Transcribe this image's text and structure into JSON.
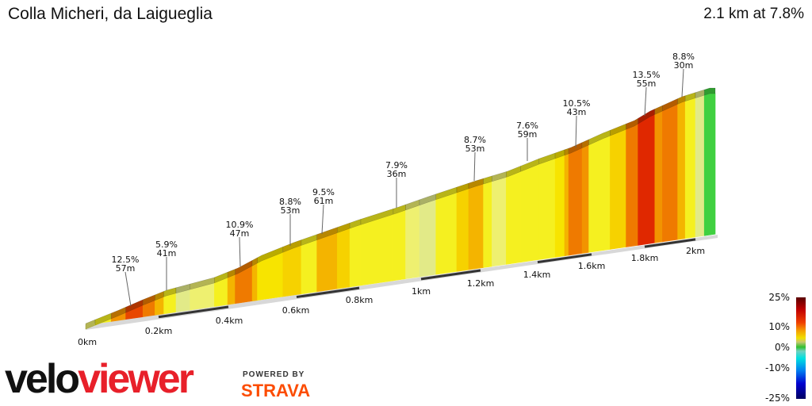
{
  "header": {
    "title": "Colla Micheri, da Laigueglia",
    "summary": "2.1 km at 7.8%"
  },
  "chart_data": {
    "type": "area",
    "title": "Colla Micheri, da Laigueglia",
    "xlabel": "",
    "ylabel": "",
    "xlim": [
      0,
      2.1
    ],
    "x_ticks": [
      "0km",
      "0.2km",
      "0.4km",
      "0.6km",
      "0.8km",
      "1km",
      "1.2km",
      "1.4km",
      "1.6km",
      "1.8km",
      "2km"
    ],
    "segments": [
      {
        "start_km": 0,
        "grade": 4
      },
      {
        "start_km": 0.026,
        "grade": 6
      },
      {
        "start_km": 0.07,
        "grade": 10
      },
      {
        "start_km": 0.11,
        "grade": 13
      },
      {
        "start_km": 0.157,
        "grade": 11
      },
      {
        "start_km": 0.19,
        "grade": 9
      },
      {
        "start_km": 0.215,
        "grade": 6
      },
      {
        "start_km": 0.25,
        "grade": 3
      },
      {
        "start_km": 0.29,
        "grade": 4
      },
      {
        "start_km": 0.36,
        "grade": 6
      },
      {
        "start_km": 0.398,
        "grade": 9
      },
      {
        "start_km": 0.42,
        "grade": 11
      },
      {
        "start_km": 0.47,
        "grade": 9
      },
      {
        "start_km": 0.485,
        "grade": 7
      },
      {
        "start_km": 0.56,
        "grade": 8
      },
      {
        "start_km": 0.615,
        "grade": 6
      },
      {
        "start_km": 0.665,
        "grade": 9
      },
      {
        "start_km": 0.73,
        "grade": 8
      },
      {
        "start_km": 0.77,
        "grade": 6
      },
      {
        "start_km": 0.805,
        "grade": 6
      },
      {
        "start_km": 0.91,
        "grade": 6
      },
      {
        "start_km": 0.95,
        "grade": 5
      },
      {
        "start_km": 0.995,
        "grade": 3
      },
      {
        "start_km": 1.05,
        "grade": 6
      },
      {
        "start_km": 1.12,
        "grade": 8
      },
      {
        "start_km": 1.16,
        "grade": 9
      },
      {
        "start_km": 1.21,
        "grade": 6
      },
      {
        "start_km": 1.24,
        "grade": 4
      },
      {
        "start_km": 1.29,
        "grade": 6
      },
      {
        "start_km": 1.34,
        "grade": 6
      },
      {
        "start_km": 1.405,
        "grade": 6
      },
      {
        "start_km": 1.465,
        "grade": 7
      },
      {
        "start_km": 1.5,
        "grade": 9
      },
      {
        "start_km": 1.515,
        "grade": 11
      },
      {
        "start_km": 1.565,
        "grade": 10
      },
      {
        "start_km": 1.59,
        "grade": 6
      },
      {
        "start_km": 1.67,
        "grade": 8
      },
      {
        "start_km": 1.73,
        "grade": 11
      },
      {
        "start_km": 1.775,
        "grade": 14
      },
      {
        "start_km": 1.84,
        "grade": 10
      },
      {
        "start_km": 1.87,
        "grade": 11
      },
      {
        "start_km": 1.93,
        "grade": 9
      },
      {
        "start_km": 1.96,
        "grade": 6
      },
      {
        "start_km": 2.0,
        "grade": 3
      },
      {
        "start_km": 2.04,
        "grade": 0
      }
    ],
    "annotations": [
      {
        "grade": "12.5%",
        "length": "57m"
      },
      {
        "grade": "5.9%",
        "length": "41m"
      },
      {
        "grade": "10.9%",
        "length": "47m"
      },
      {
        "grade": "8.8%",
        "length": "53m"
      },
      {
        "grade": "9.5%",
        "length": "61m"
      },
      {
        "grade": "7.9%",
        "length": "36m"
      },
      {
        "grade": "8.7%",
        "length": "53m"
      },
      {
        "grade": "7.6%",
        "length": "59m"
      },
      {
        "grade": "10.5%",
        "length": "43m"
      },
      {
        "grade": "13.5%",
        "length": "55m"
      },
      {
        "grade": "8.8%",
        "length": "30m"
      }
    ],
    "legend": {
      "labels": [
        "25%",
        "10%",
        "0%",
        "-10%",
        "-25%"
      ],
      "placement": "bottom-right"
    }
  },
  "branding": {
    "logo_part1": "velo",
    "logo_part2": "viewer",
    "powered": "POWERED BY",
    "strava": "STRAVA"
  }
}
